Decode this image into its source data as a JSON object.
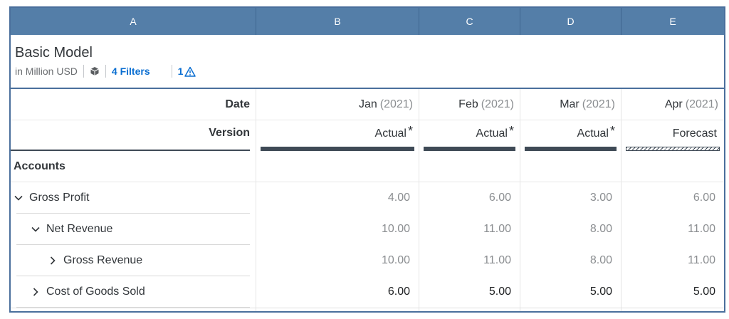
{
  "columns": [
    "A",
    "B",
    "C",
    "D",
    "E"
  ],
  "title": {
    "name": "Basic Model",
    "unit": "in Million USD",
    "filters": "4 Filters",
    "warnings": "1"
  },
  "header_rows": {
    "date_label": "Date",
    "version_label": "Version",
    "dates": [
      {
        "month": "Jan",
        "year": "(2021)"
      },
      {
        "month": "Feb",
        "year": "(2021)"
      },
      {
        "month": "Mar",
        "year": "(2021)"
      },
      {
        "month": "Apr",
        "year": "(2021)"
      }
    ],
    "versions": [
      {
        "label": "Actual",
        "star": "*"
      },
      {
        "label": "Actual",
        "star": "*"
      },
      {
        "label": "Actual",
        "star": "*"
      },
      {
        "label": "Forecast",
        "star": ""
      }
    ]
  },
  "accounts_label": "Accounts",
  "rows": [
    {
      "label": "Gross Profit",
      "values": [
        "4.00",
        "6.00",
        "3.00",
        "6.00"
      ]
    },
    {
      "label": "Net Revenue",
      "values": [
        "10.00",
        "11.00",
        "8.00",
        "11.00"
      ]
    },
    {
      "label": "Gross Revenue",
      "values": [
        "10.00",
        "11.00",
        "8.00",
        "11.00"
      ]
    },
    {
      "label": "Cost of Goods Sold",
      "values": [
        "6.00",
        "5.00",
        "5.00",
        "5.00"
      ]
    }
  ],
  "colors": {
    "header_bg": "#547ea8",
    "frame": "#4a6f9c",
    "link": "#0a6ed1",
    "version_bar": "#3f4a56"
  }
}
